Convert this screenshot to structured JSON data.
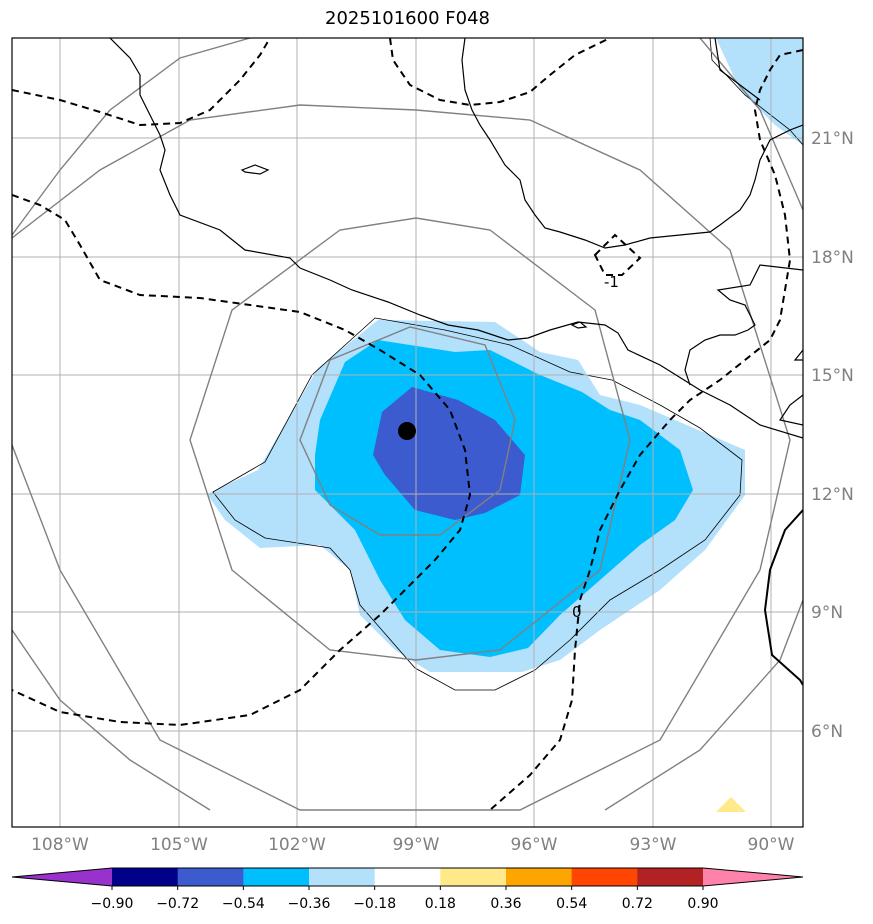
{
  "title": "2025101600 F048",
  "map": {
    "lon_range": [
      -109.2,
      -89.3
    ],
    "lat_range": [
      3.7,
      23.2
    ],
    "lon_ticks": [
      -108,
      -105,
      -102,
      -99,
      -96,
      -93,
      -90
    ],
    "lat_ticks": [
      6,
      9,
      12,
      15,
      18,
      21
    ],
    "lon_labels": [
      "108°W",
      "105°W",
      "102°W",
      "99°W",
      "96°W",
      "93°W",
      "90°W"
    ],
    "lat_labels": [
      "6°N",
      "9°N",
      "12°N",
      "15°N",
      "18°N",
      "21°N"
    ],
    "center_marker": {
      "lon": -99.2,
      "lat": 13.6
    },
    "contour_labels": [
      "-1",
      "0"
    ]
  },
  "colorbar": {
    "levels": [
      "−0.90",
      "−0.72",
      "−0.54",
      "−0.36",
      "−0.18",
      "0.18",
      "0.36",
      "0.54",
      "0.72",
      "0.90"
    ],
    "colors": [
      "#9932cc",
      "#00008b",
      "#3b5bcf",
      "#00bfff",
      "#b3e0fb",
      "#ffffff",
      "#ffe98a",
      "#ffa500",
      "#ff4500",
      "#b22222",
      "#ff82ab"
    ]
  }
}
